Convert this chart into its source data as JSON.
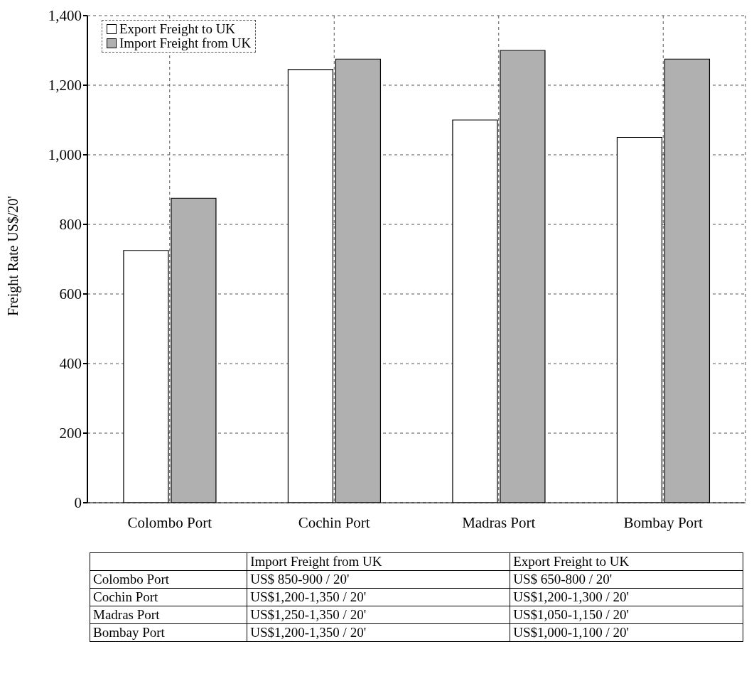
{
  "chart_data": {
    "type": "bar",
    "ylabel": "Freight Rate US$/20'",
    "categories": [
      "Colombo Port",
      "Cochin Port",
      "Madras Port",
      "Bombay Port"
    ],
    "series": [
      {
        "name": "Export Freight to UK",
        "color": "#ffffff",
        "values": [
          725,
          1245,
          1100,
          1050
        ]
      },
      {
        "name": "Import Freight from UK",
        "color": "#b0b0b0",
        "values": [
          875,
          1275,
          1300,
          1275
        ]
      }
    ],
    "ylim": [
      0,
      1400
    ],
    "yticks": [
      0,
      200,
      400,
      600,
      800,
      {
        "value": 1000,
        "label": "1,000"
      },
      {
        "value": 1200,
        "label": "1,200"
      },
      {
        "value": 1400,
        "label": "1,400"
      }
    ],
    "grid": true,
    "legend": "top left",
    "annotations": [
      "Import Freight from UK",
      "Export Freight to UK",
      "Colombo Port",
      "US$ 850-900 / 20'",
      "US$ 650-800 / 20'",
      "Cochin Port",
      "US$1,200-1,350 / 20'",
      "US$1,200-1,300 / 20'",
      "Madras Port",
      "US$1,250-1,350 / 20'",
      "US$1,050-1,150 / 20'",
      "Bombay Port",
      "US$1,200-1,350 / 20'",
      "US$1,000-1,100 / 20'"
    ]
  }
}
